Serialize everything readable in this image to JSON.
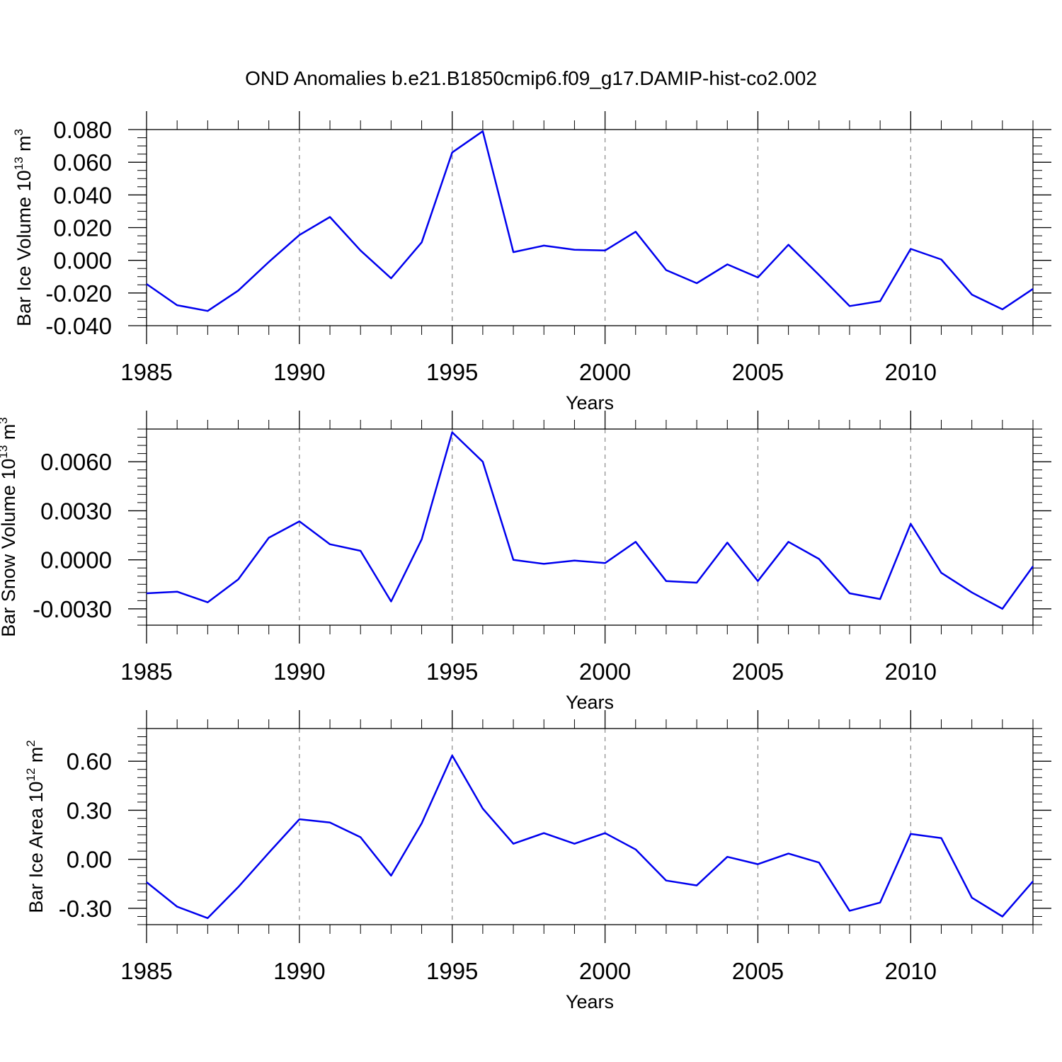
{
  "figure": {
    "title": "OND Anomalies b.e21.B1850cmip6.f09_g17.DAMIP-hist-co2.002"
  },
  "colors": {
    "series": "#0000ee",
    "grid": "#888888",
    "axes": "#000000"
  },
  "chart_data": [
    {
      "type": "line",
      "ylabel": {
        "text": "Bar Ice Volume 10",
        "exp": "13",
        "unit": " m",
        "unit_exp": "3"
      },
      "xlabel": "Years",
      "xlim": [
        1985,
        2014
      ],
      "ylim": [
        -0.04,
        0.08
      ],
      "yticks": [
        -0.04,
        -0.02,
        0.0,
        0.02,
        0.04,
        0.06,
        0.08
      ],
      "ytick_labels": [
        "-0.040",
        "-0.020",
        "0.000",
        "0.020",
        "0.040",
        "0.060",
        "0.080"
      ],
      "yminor_step": 0.005,
      "xticks": [
        1985,
        1990,
        1995,
        2000,
        2005,
        2010
      ],
      "xtick_labels": [
        "1985",
        "1990",
        "1995",
        "2000",
        "2005",
        "2010"
      ],
      "grid_x": [
        1990,
        1995,
        2000,
        2005,
        2010
      ],
      "x": [
        1985,
        1986,
        1987,
        1988,
        1989,
        1990,
        1991,
        1992,
        1993,
        1994,
        1995,
        1996,
        1997,
        1998,
        1999,
        2000,
        2001,
        2002,
        2003,
        2004,
        2005,
        2006,
        2007,
        2008,
        2009,
        2010,
        2011,
        2012,
        2013,
        2014
      ],
      "values": [
        -0.0145,
        -0.0275,
        -0.031,
        -0.0185,
        -0.001,
        0.0155,
        0.0265,
        0.006,
        -0.011,
        0.011,
        0.066,
        0.079,
        0.005,
        0.009,
        0.0065,
        0.006,
        0.0175,
        -0.006,
        -0.014,
        -0.0025,
        -0.0105,
        0.0095,
        -0.009,
        -0.028,
        -0.025,
        0.007,
        0.0005,
        -0.021,
        -0.03,
        -0.0175
      ]
    },
    {
      "type": "line",
      "ylabel": {
        "text": "Bar Snow Volume 10",
        "exp": "13",
        "unit": " m",
        "unit_exp": "3"
      },
      "xlabel": "Years",
      "xlim": [
        1985,
        2014
      ],
      "ylim": [
        -0.004,
        0.008
      ],
      "yticks": [
        -0.003,
        0.0,
        0.003,
        0.006
      ],
      "ytick_labels": [
        "-0.0030",
        "0.0000",
        "0.0030",
        "0.0060"
      ],
      "yminor_step": 0.0005,
      "xticks": [
        1985,
        1990,
        1995,
        2000,
        2005,
        2010
      ],
      "xtick_labels": [
        "1985",
        "1990",
        "1995",
        "2000",
        "2005",
        "2010"
      ],
      "grid_x": [
        1990,
        1995,
        2000,
        2005,
        2010
      ],
      "x": [
        1985,
        1986,
        1987,
        1988,
        1989,
        1990,
        1991,
        1992,
        1993,
        1994,
        1995,
        1996,
        1997,
        1998,
        1999,
        2000,
        2001,
        2002,
        2003,
        2004,
        2005,
        2006,
        2007,
        2008,
        2009,
        2010,
        2011,
        2012,
        2013,
        2014
      ],
      "values": [
        -0.00205,
        -0.00195,
        -0.0026,
        -0.0012,
        0.00135,
        0.00235,
        0.00095,
        0.00055,
        -0.00255,
        0.00125,
        0.0078,
        0.006,
        0.0,
        -0.00025,
        -5e-05,
        -0.0002,
        0.0011,
        -0.0013,
        -0.0014,
        0.00105,
        -0.0013,
        0.0011,
        5e-05,
        -0.00205,
        -0.0024,
        0.0022,
        -0.0008,
        -0.002,
        -0.003,
        -0.0004
      ]
    },
    {
      "type": "line",
      "ylabel": {
        "text": "Bar Ice Area 10",
        "exp": "12",
        "unit": " m",
        "unit_exp": "2"
      },
      "xlabel": "Years",
      "xlim": [
        1985,
        2014
      ],
      "ylim": [
        -0.4,
        0.8
      ],
      "yticks": [
        -0.3,
        0.0,
        0.3,
        0.6
      ],
      "ytick_labels": [
        "-0.30",
        "0.00",
        "0.30",
        "0.60"
      ],
      "yminor_step": 0.05,
      "xticks": [
        1985,
        1990,
        1995,
        2000,
        2005,
        2010
      ],
      "xtick_labels": [
        "1985",
        "1990",
        "1995",
        "2000",
        "2005",
        "2010"
      ],
      "grid_x": [
        1990,
        1995,
        2000,
        2005,
        2010
      ],
      "x": [
        1985,
        1986,
        1987,
        1988,
        1989,
        1990,
        1991,
        1992,
        1993,
        1994,
        1995,
        1996,
        1997,
        1998,
        1999,
        2000,
        2001,
        2002,
        2003,
        2004,
        2005,
        2006,
        2007,
        2008,
        2009,
        2010,
        2011,
        2012,
        2013,
        2014
      ],
      "values": [
        -0.14,
        -0.29,
        -0.36,
        -0.17,
        0.04,
        0.245,
        0.225,
        0.135,
        -0.1,
        0.22,
        0.635,
        0.31,
        0.095,
        0.16,
        0.095,
        0.16,
        0.06,
        -0.13,
        -0.16,
        0.015,
        -0.03,
        0.035,
        -0.02,
        -0.315,
        -0.265,
        0.155,
        0.13,
        -0.235,
        -0.35,
        -0.135
      ]
    }
  ]
}
